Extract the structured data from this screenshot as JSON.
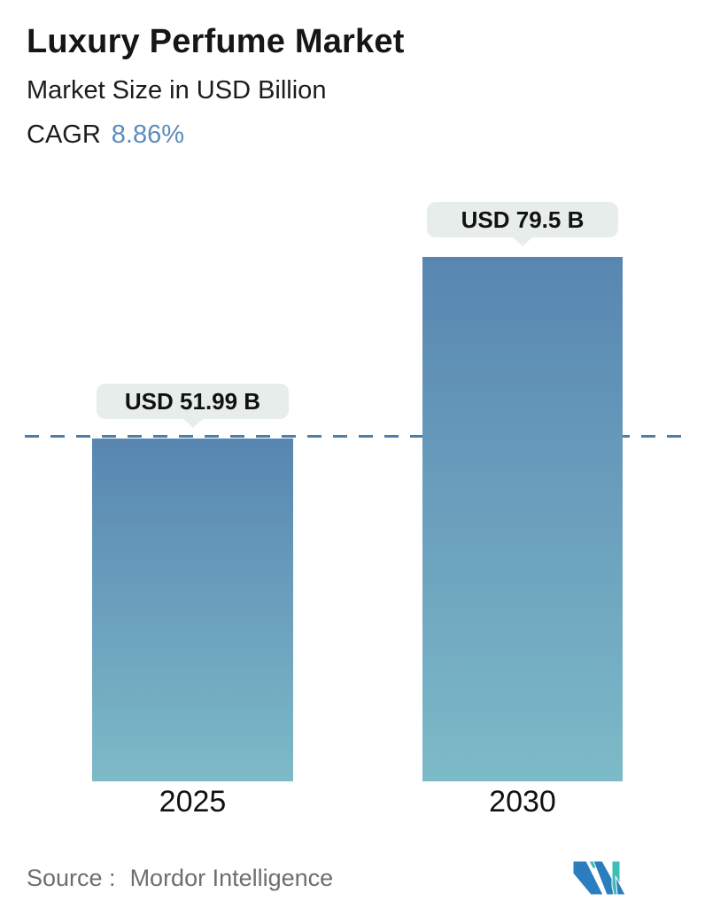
{
  "header": {
    "title": "Luxury Perfume Market",
    "subtitle": "Market Size in USD Billion",
    "cagr_label": "CAGR",
    "cagr_value": "8.86%"
  },
  "chart_data": {
    "type": "bar",
    "title": "Luxury Perfume Market",
    "subtitle": "Market Size in USD Billion",
    "cagr": "8.86%",
    "unit": "USD Billion",
    "categories": [
      "2025",
      "2030"
    ],
    "values": [
      51.99,
      79.5
    ],
    "value_labels": [
      "USD 51.99 B",
      "USD 79.5 B"
    ],
    "ylim": [
      0,
      79.5
    ],
    "grid": false,
    "legend": false,
    "reference_line": {
      "style": "dashed",
      "at_value": 51.99,
      "color": "#4d7ea8",
      "note": "horizontal dashed line at the 2025 bar top spanning the full chart width"
    },
    "bar_gradient": {
      "top": "#5886b1",
      "bottom": "#7dbac8"
    },
    "label_badge_background": "#e7edeb"
  },
  "footer": {
    "source_label": "Source :",
    "source_value": "Mordor Intelligence",
    "logo_name": "mordor-intelligence-logo",
    "logo_colors": {
      "teal": "#3fbdb7",
      "blue": "#2b7dbd"
    }
  },
  "colors": {
    "accent_blue": "#5b8cba",
    "text": "#161616",
    "muted_text": "#6e6e6e",
    "background": "#ffffff"
  }
}
